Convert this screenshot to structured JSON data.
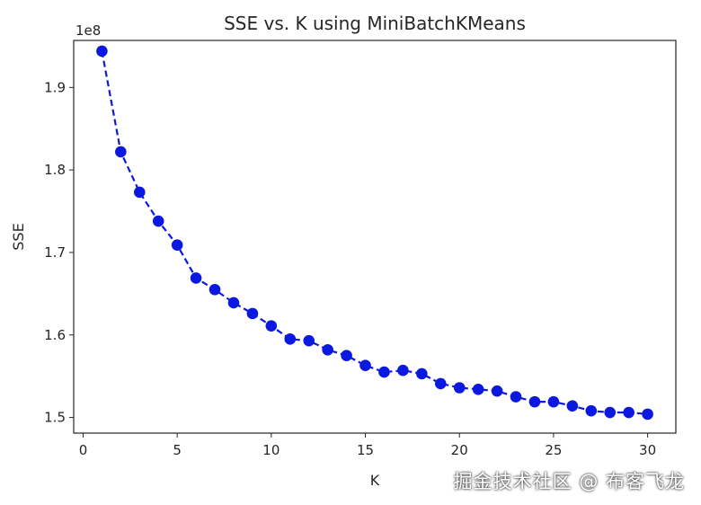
{
  "chart_data": {
    "type": "line",
    "title": "SSE vs. K using MiniBatchKMeans",
    "xlabel": "K",
    "ylabel": "SSE",
    "offset_label": "1e8",
    "xlim": [
      -0.5,
      31.5
    ],
    "ylim": [
      1.481,
      1.957
    ],
    "xticks": [
      0,
      5,
      10,
      15,
      20,
      25,
      30
    ],
    "yticks": [
      1.5,
      1.6,
      1.7,
      1.8,
      1.9
    ],
    "grid": false,
    "line_style": "dashed",
    "marker": "circle",
    "color": "#0b19e0",
    "series": [
      {
        "x": [
          1,
          2,
          3,
          4,
          5,
          6,
          7,
          8,
          9,
          10,
          11,
          12,
          13,
          14,
          15,
          16,
          17,
          18,
          19,
          20,
          21,
          22,
          23,
          24,
          25,
          26,
          27,
          28,
          29,
          30
        ],
        "values": [
          1.944,
          1.822,
          1.773,
          1.738,
          1.709,
          1.669,
          1.655,
          1.639,
          1.626,
          1.611,
          1.595,
          1.593,
          1.582,
          1.575,
          1.563,
          1.555,
          1.557,
          1.553,
          1.541,
          1.536,
          1.534,
          1.532,
          1.525,
          1.519,
          1.519,
          1.514,
          1.508,
          1.506,
          1.506,
          1.504
        ]
      }
    ]
  },
  "watermark": "掘金技术社区 @ 布客飞龙"
}
